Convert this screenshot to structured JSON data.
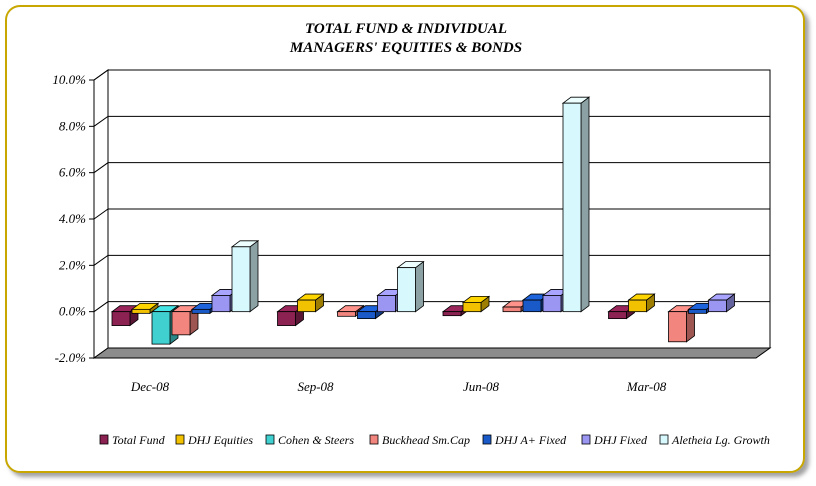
{
  "chart_data": {
    "type": "bar",
    "title_lines": [
      "TOTAL FUND  & INDIVIDUAL",
      "MANAGERS' EQUITIES & BONDS"
    ],
    "categories": [
      "Dec-08",
      "Sep-08",
      "Jun-08",
      "Mar-08"
    ],
    "y_ticks": [
      "10.0%",
      "8.0%",
      "6.0%",
      "4.0%",
      "2.0%",
      "0.0%",
      "-2.0%"
    ],
    "ylim": [
      -2.0,
      10.0
    ],
    "grid": true,
    "legend_position": "bottom",
    "series": [
      {
        "name": "Total Fund",
        "color": "#8B2252",
        "values": [
          -0.6,
          -0.6,
          -0.1,
          -0.3
        ]
      },
      {
        "name": "DHJ Equities",
        "color": "#F2C200",
        "values": [
          0.1,
          0.5,
          0.4,
          0.5
        ]
      },
      {
        "name": "Cohen & Steers",
        "color": "#40D0D0",
        "values": [
          -1.4,
          null,
          null,
          null
        ]
      },
      {
        "name": "Buckhead Sm.Cap",
        "color": "#F2857E",
        "values": [
          -1.0,
          -0.2,
          0.2,
          -1.3
        ]
      },
      {
        "name": "DHJ A+ Fixed",
        "color": "#1A5AC8",
        "values": [
          0.1,
          -0.3,
          0.5,
          0.1
        ]
      },
      {
        "name": "DHJ Fixed",
        "color": "#9A96F2",
        "values": [
          0.7,
          0.7,
          0.7,
          0.5
        ]
      },
      {
        "name": "Aletheia Lg. Growth",
        "color": "#D7F8FC",
        "values": [
          2.8,
          1.9,
          9.0,
          null
        ]
      }
    ]
  }
}
